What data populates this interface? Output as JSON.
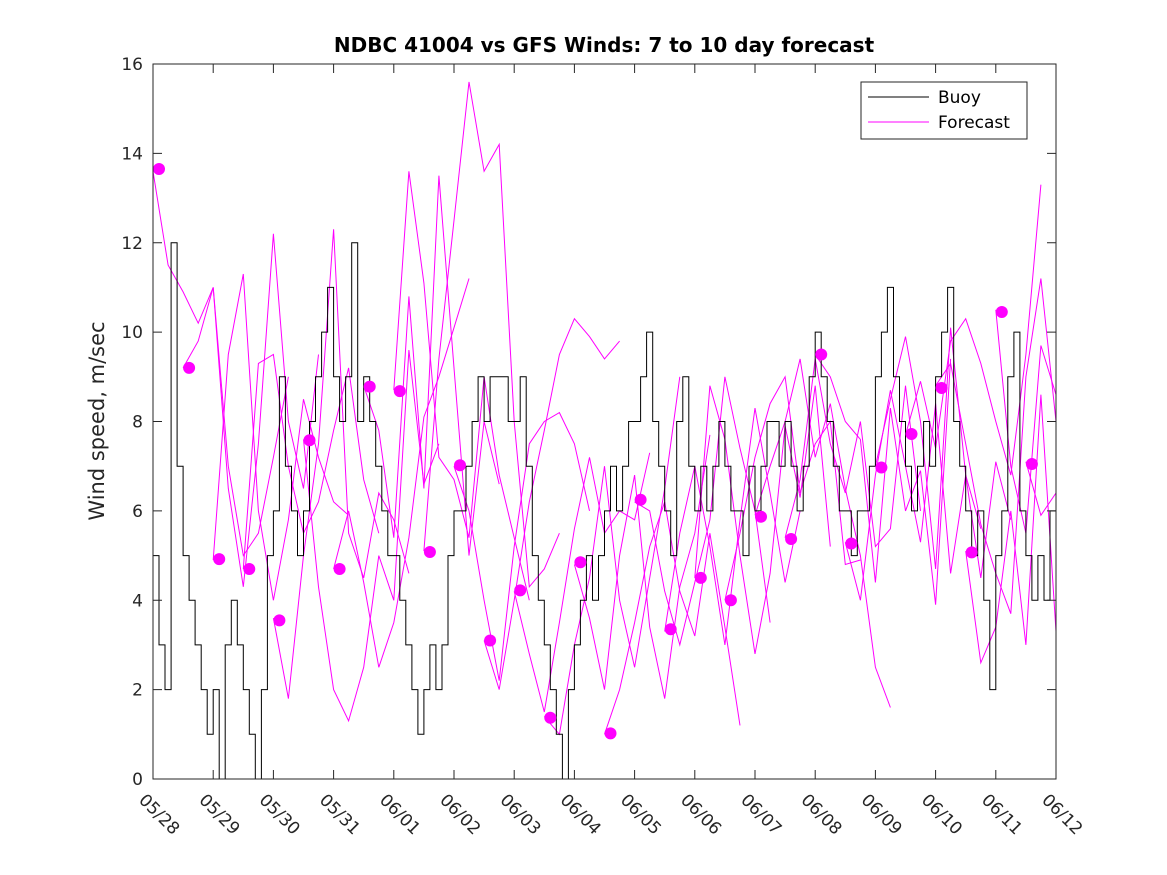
{
  "chart_data": {
    "type": "line",
    "title": "NDBC 41004 vs GFS Winds: 7 to 10 day forecast",
    "xlabel": "",
    "ylabel": "Wind speed, m/sec",
    "x_tick_labels": [
      "05/28",
      "05/29",
      "05/30",
      "05/31",
      "06/01",
      "06/02",
      "06/03",
      "06/04",
      "06/05",
      "06/06",
      "06/07",
      "06/08",
      "06/09",
      "06/10",
      "06/11",
      "06/12"
    ],
    "x_range_days": [
      0,
      15
    ],
    "ylim": [
      0,
      16
    ],
    "y_ticks": [
      0,
      2,
      4,
      6,
      8,
      10,
      12,
      14,
      16
    ],
    "grid": false,
    "legend_position": "top-right",
    "legend": [
      "Buoy",
      "Forecast"
    ],
    "colors": {
      "buoy": "#000000",
      "forecast": "#ff00ff"
    },
    "series": [
      {
        "name": "Buoy",
        "color": "#000000",
        "x": [
          0,
          0.1,
          0.2,
          0.3,
          0.4,
          0.5,
          0.6,
          0.7,
          0.8,
          0.9,
          1.0,
          1.1,
          1.2,
          1.3,
          1.4,
          1.5,
          1.6,
          1.7,
          1.8,
          1.9,
          2.0,
          2.1,
          2.2,
          2.3,
          2.4,
          2.5,
          2.6,
          2.7,
          2.8,
          2.9,
          3.0,
          3.1,
          3.2,
          3.3,
          3.4,
          3.5,
          3.6,
          3.7,
          3.8,
          3.9,
          4.0,
          4.1,
          4.2,
          4.3,
          4.4,
          4.5,
          4.6,
          4.7,
          4.8,
          4.9,
          5.0,
          5.1,
          5.2,
          5.3,
          5.4,
          5.5,
          5.6,
          5.7,
          5.8,
          5.9,
          6.0,
          6.1,
          6.2,
          6.3,
          6.4,
          6.5,
          6.6,
          6.7,
          6.8,
          6.9,
          7.0,
          7.1,
          7.2,
          7.3,
          7.4,
          7.5,
          7.6,
          7.7,
          7.8,
          7.9,
          8.0,
          8.1,
          8.2,
          8.3,
          8.4,
          8.5,
          8.6,
          8.7,
          8.8,
          8.9,
          9.0,
          9.1,
          9.2,
          9.3,
          9.4,
          9.5,
          9.6,
          9.7,
          9.8,
          9.9,
          10.0,
          10.1,
          10.2,
          10.3,
          10.4,
          10.5,
          10.6,
          10.7,
          10.8,
          10.9,
          11.0,
          11.1,
          11.2,
          11.3,
          11.4,
          11.5,
          11.6,
          11.7,
          11.8,
          11.9,
          12.0,
          12.1,
          12.2,
          12.3,
          12.4,
          12.5,
          12.6,
          12.7,
          12.8,
          12.9,
          13.0,
          13.1,
          13.2,
          13.3,
          13.4,
          13.5,
          13.6,
          13.7,
          13.8,
          13.9,
          14.0,
          14.1,
          14.2,
          14.3,
          14.4,
          14.5,
          14.6,
          14.7,
          14.8,
          14.9,
          15.0
        ],
        "values": [
          5,
          3,
          2,
          12,
          7,
          5,
          4,
          3,
          2,
          1,
          2,
          0,
          3,
          4,
          3,
          2,
          1,
          0,
          2,
          5,
          6,
          9,
          7,
          6,
          5,
          6,
          8,
          9,
          10,
          11,
          9,
          8,
          9,
          12,
          8,
          9,
          8,
          7,
          6,
          5,
          5,
          4,
          3,
          2,
          1,
          2,
          3,
          2,
          3,
          5,
          6,
          6,
          7,
          8,
          9,
          8,
          9,
          9,
          9,
          8,
          8,
          9,
          7,
          5,
          4,
          3,
          2,
          1,
          0,
          2,
          3,
          4,
          5,
          4,
          5,
          6,
          7,
          6,
          7,
          8,
          8,
          9,
          10,
          8,
          7,
          6,
          5,
          8,
          9,
          7,
          6,
          7,
          6,
          7,
          8,
          7,
          6,
          6,
          5,
          7,
          6,
          7,
          8,
          8,
          7,
          8,
          7,
          6,
          7,
          9,
          10,
          9,
          8,
          7,
          6,
          6,
          5,
          6,
          6,
          7,
          9,
          10,
          11,
          9,
          8,
          7,
          6,
          7,
          8,
          7,
          9,
          10,
          11,
          8,
          7,
          6,
          5,
          6,
          4,
          2,
          5,
          6,
          9,
          10,
          6,
          5,
          4,
          5,
          4,
          6,
          7
        ],
        "description": "hourly buoy wind speed, approximated"
      }
    ],
    "forecasts": [
      {
        "name": "Forecast",
        "color": "#ff00ff",
        "start_day": 0.0,
        "dt_days": 0.25,
        "values": [
          13.6,
          11.5,
          10.9,
          10.2,
          11.0,
          7.0,
          5.0,
          5.5,
          7.2,
          9.0
        ]
      },
      {
        "name": "Forecast",
        "color": "#ff00ff",
        "start_day": 0.5,
        "dt_days": 0.25,
        "values": [
          9.2,
          9.8,
          11.0,
          6.5,
          4.3,
          7.5,
          12.2,
          8.0,
          6.5,
          9.5
        ]
      },
      {
        "name": "Forecast",
        "color": "#ff00ff",
        "start_day": 1.0,
        "dt_days": 0.25,
        "values": [
          4.9,
          9.5,
          11.3,
          6.0,
          4.0,
          5.8,
          8.5,
          7.2,
          6.2,
          5.9
        ]
      },
      {
        "name": "Forecast",
        "color": "#ff00ff",
        "start_day": 1.5,
        "dt_days": 0.25,
        "values": [
          4.7,
          9.3,
          9.5,
          7.0,
          5.5,
          6.2,
          7.8,
          9.2,
          6.7,
          5.5
        ]
      },
      {
        "name": "Forecast",
        "color": "#ff00ff",
        "start_day": 2.0,
        "dt_days": 0.25,
        "values": [
          3.6,
          1.8,
          5.0,
          7.5,
          12.3,
          5.5,
          4.5,
          6.4,
          5.8,
          4.6
        ]
      },
      {
        "name": "Forecast",
        "color": "#ff00ff",
        "start_day": 2.5,
        "dt_days": 0.25,
        "values": [
          7.6,
          4.3,
          2.0,
          1.3,
          2.5,
          5.0,
          4.0,
          9.6,
          6.6,
          7.5
        ]
      },
      {
        "name": "Forecast",
        "color": "#ff00ff",
        "start_day": 3.0,
        "dt_days": 0.25,
        "values": [
          4.7,
          6.0,
          4.4,
          2.5,
          3.5,
          5.4,
          8.1,
          9.0,
          10.1,
          11.2
        ]
      },
      {
        "name": "Forecast",
        "color": "#ff00ff",
        "start_day": 3.5,
        "dt_days": 0.25,
        "values": [
          8.8,
          7.8,
          5.4,
          10.8,
          6.5,
          13.5,
          9.2,
          5.0,
          8.0,
          6.6
        ]
      },
      {
        "name": "Forecast",
        "color": "#ff00ff",
        "start_day": 4.0,
        "dt_days": 0.25,
        "values": [
          8.7,
          13.6,
          11.1,
          7.2,
          6.7,
          5.4,
          9.0,
          6.8,
          5.4,
          4.0
        ]
      },
      {
        "name": "Forecast",
        "color": "#ff00ff",
        "start_day": 4.5,
        "dt_days": 0.25,
        "values": [
          5.1,
          9.4,
          12.5,
          15.6,
          13.6,
          14.2,
          8.0,
          4.3,
          4.7,
          5.5
        ]
      },
      {
        "name": "Forecast",
        "color": "#ff00ff",
        "start_day": 5.0,
        "dt_days": 0.25,
        "values": [
          7.0,
          6.0,
          4.0,
          2.2,
          5.2,
          7.5,
          8.0,
          8.2,
          7.5,
          6.0
        ]
      },
      {
        "name": "Forecast",
        "color": "#ff00ff",
        "start_day": 5.5,
        "dt_days": 0.25,
        "values": [
          3.1,
          2.0,
          4.0,
          6.2,
          7.8,
          9.5,
          10.3,
          9.9,
          9.4,
          9.8
        ]
      },
      {
        "name": "Forecast",
        "color": "#ff00ff",
        "start_day": 6.0,
        "dt_days": 0.25,
        "values": [
          4.2,
          2.8,
          1.5,
          3.5,
          5.6,
          7.2,
          5.5,
          6.0,
          5.8,
          7.3
        ]
      },
      {
        "name": "Forecast",
        "color": "#ff00ff",
        "start_day": 6.5,
        "dt_days": 0.25,
        "values": [
          1.4,
          1.0,
          3.0,
          4.5,
          7.0,
          4.0,
          2.5,
          4.5,
          6.5,
          9.0
        ]
      },
      {
        "name": "Forecast",
        "color": "#ff00ff",
        "start_day": 7.0,
        "dt_days": 0.25,
        "values": [
          4.8,
          3.6,
          2.0,
          5.0,
          6.8,
          3.4,
          1.8,
          4.3,
          5.5,
          7.7
        ]
      },
      {
        "name": "Forecast",
        "color": "#ff00ff",
        "start_day": 7.5,
        "dt_days": 0.25,
        "values": [
          1.0,
          2.0,
          3.5,
          5.2,
          6.2,
          4.2,
          3.2,
          5.5,
          3.4,
          1.2
        ]
      },
      {
        "name": "Forecast",
        "color": "#ff00ff",
        "start_day": 8.0,
        "dt_days": 0.25,
        "values": [
          6.2,
          6.0,
          4.2,
          3.0,
          4.4,
          5.8,
          9.0,
          7.4,
          6.0,
          3.5
        ]
      },
      {
        "name": "Forecast",
        "color": "#ff00ff",
        "start_day": 8.5,
        "dt_days": 0.25,
        "values": [
          3.3,
          5.5,
          7.0,
          5.2,
          3.0,
          5.8,
          8.3,
          6.4,
          4.4,
          6.0
        ]
      },
      {
        "name": "Forecast",
        "color": "#ff00ff",
        "start_day": 9.0,
        "dt_days": 0.25,
        "values": [
          4.5,
          8.8,
          7.6,
          5.0,
          2.8,
          4.6,
          7.9,
          6.3,
          8.8,
          5.2
        ]
      },
      {
        "name": "Forecast",
        "color": "#ff00ff",
        "start_day": 9.5,
        "dt_days": 0.25,
        "values": [
          4.0,
          5.5,
          7.2,
          8.4,
          9.0,
          6.4,
          7.5,
          8.0,
          4.8,
          4.9
        ]
      },
      {
        "name": "Forecast",
        "color": "#ff00ff",
        "start_day": 10.0,
        "dt_days": 0.25,
        "values": [
          5.9,
          7.0,
          8.0,
          9.4,
          7.2,
          8.4,
          6.5,
          5.0,
          2.5,
          1.6
        ]
      },
      {
        "name": "Forecast",
        "color": "#ff00ff",
        "start_day": 10.5,
        "dt_days": 0.25,
        "values": [
          5.4,
          6.7,
          9.4,
          7.5,
          6.4,
          8.0,
          5.2,
          5.6,
          8.8,
          6.0
        ]
      },
      {
        "name": "Forecast",
        "color": "#ff00ff",
        "start_day": 11.0,
        "dt_days": 0.25,
        "values": [
          9.5,
          9.0,
          8.0,
          7.6,
          4.4,
          8.3,
          6.0,
          6.9,
          3.9,
          9.4
        ]
      },
      {
        "name": "Forecast",
        "color": "#ff00ff",
        "start_day": 11.5,
        "dt_days": 0.25,
        "values": [
          5.3,
          4.0,
          6.8,
          8.7,
          7.0,
          5.3,
          8.4,
          4.6,
          6.8,
          5.6
        ]
      },
      {
        "name": "Forecast",
        "color": "#ff00ff",
        "start_day": 12.0,
        "dt_days": 0.25,
        "values": [
          7.0,
          8.5,
          9.9,
          8.0,
          4.7,
          10.1,
          6.8,
          4.5,
          7.1,
          5.8
        ]
      },
      {
        "name": "Forecast",
        "color": "#ff00ff",
        "start_day": 12.5,
        "dt_days": 0.25,
        "values": [
          7.7,
          8.9,
          7.4,
          9.8,
          10.3,
          9.3,
          8.0,
          6.8,
          9.5,
          13.3
        ]
      },
      {
        "name": "Forecast",
        "color": "#ff00ff",
        "start_day": 13.0,
        "dt_days": 0.25,
        "values": [
          8.8,
          9.3,
          7.5,
          5.7,
          4.6,
          3.7,
          9.0,
          11.2,
          8.0,
          5.6
        ]
      },
      {
        "name": "Forecast",
        "color": "#ff00ff",
        "start_day": 13.5,
        "dt_days": 0.25,
        "values": [
          5.1,
          2.6,
          3.4,
          6.0,
          3.0,
          8.6,
          3.3,
          6.1,
          4.0,
          5.0
        ]
      },
      {
        "name": "Forecast",
        "color": "#ff00ff",
        "start_day": 14.0,
        "dt_days": 0.25,
        "values": [
          10.5,
          7.0,
          5.5,
          9.7,
          8.6,
          2.4,
          3.0,
          5.3,
          7.2,
          6.6
        ]
      },
      {
        "name": "Forecast",
        "color": "#ff00ff",
        "start_day": 14.5,
        "dt_days": 0.25,
        "values": [
          7.1,
          5.9,
          6.4,
          7.8
        ]
      }
    ],
    "markers": {
      "name": "Forecast",
      "color": "#ff00ff",
      "x": [
        0.1,
        0.6,
        1.1,
        1.6,
        2.1,
        2.6,
        3.1,
        3.6,
        4.1,
        4.6,
        5.1,
        5.6,
        6.1,
        6.6,
        7.1,
        7.6,
        8.1,
        8.6,
        9.1,
        9.6,
        10.1,
        10.6,
        11.1,
        11.6,
        12.1,
        12.6,
        13.1,
        13.6,
        14.1,
        14.6
      ],
      "values": [
        13.65,
        9.2,
        4.92,
        4.7,
        3.55,
        7.58,
        4.7,
        8.78,
        8.68,
        5.08,
        7.02,
        3.1,
        4.22,
        1.37,
        4.85,
        1.02,
        6.25,
        3.35,
        4.5,
        4.0,
        5.87,
        5.37,
        9.5,
        5.27,
        6.97,
        7.72,
        8.75,
        5.07,
        10.45,
        7.05
      ]
    }
  }
}
